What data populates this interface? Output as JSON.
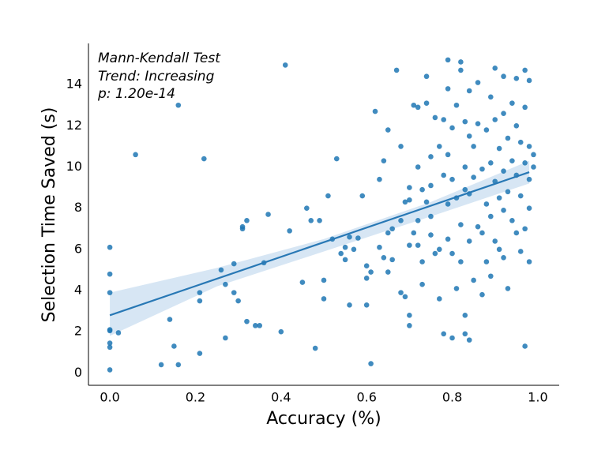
{
  "chart_data": {
    "type": "scatter",
    "xlabel": "Accuracy (%)",
    "ylabel": "Selection Time Saved (s)",
    "annotation": [
      "Mann-Kendall Test",
      "Trend: Increasing",
      "p:  1.20e-14"
    ],
    "color": "#1f77b4",
    "x": [
      0,
      0,
      0,
      0,
      0,
      0,
      0,
      0,
      0.02,
      0.06,
      0.12,
      0.14,
      0.15,
      0.16,
      0.16,
      0.21,
      0.21,
      0.21,
      0.22,
      0.26,
      0.27,
      0.27,
      0.29,
      0.29,
      0.3,
      0.31,
      0.31,
      0.32,
      0.32,
      0.35,
      0.34,
      0.36,
      0.37,
      0.4,
      0.41,
      0.42,
      0.45,
      0.46,
      0.47,
      0.48,
      0.49,
      0.5,
      0.5,
      0.51,
      0.52,
      0.53,
      0.54,
      0.55,
      0.55,
      0.56,
      0.56,
      0.57,
      0.58,
      0.59,
      0.6,
      0.6,
      0.6,
      0.61,
      0.61,
      0.62,
      0.63,
      0.63,
      0.64,
      0.64,
      0.65,
      0.65,
      0.65,
      0.66,
      0.66,
      0.67,
      0.68,
      0.68,
      0.68,
      0.69,
      0.69,
      0.7,
      0.7,
      0.7,
      0.7,
      0.7,
      0.71,
      0.71,
      0.72,
      0.72,
      0.72,
      0.72,
      0.73,
      0.73,
      0.73,
      0.74,
      0.74,
      0.74,
      0.75,
      0.75,
      0.75,
      0.75,
      0.76,
      0.76,
      0.77,
      0.77,
      0.77,
      0.78,
      0.78,
      0.78,
      0.79,
      0.79,
      0.79,
      0.79,
      0.79,
      0.8,
      0.8,
      0.8,
      0.8,
      0.81,
      0.81,
      0.81,
      0.82,
      0.82,
      0.82,
      0.82,
      0.83,
      0.83,
      0.83,
      0.83,
      0.83,
      0.84,
      0.84,
      0.84,
      0.84,
      0.84,
      0.85,
      0.85,
      0.85,
      0.86,
      0.86,
      0.86,
      0.87,
      0.87,
      0.87,
      0.88,
      0.88,
      0.88,
      0.89,
      0.89,
      0.89,
      0.89,
      0.9,
      0.9,
      0.9,
      0.9,
      0.91,
      0.91,
      0.91,
      0.92,
      0.92,
      0.92,
      0.92,
      0.92,
      0.93,
      0.93,
      0.93,
      0.94,
      0.94,
      0.94,
      0.95,
      0.95,
      0.95,
      0.95,
      0.96,
      0.96,
      0.96,
      0.97,
      0.97,
      0.97,
      0.97,
      0.97,
      0.98,
      0.98,
      0.98,
      0.98,
      0.98,
      0.99,
      0.99
    ],
    "values": [
      6.1,
      4.8,
      3.9,
      2.1,
      2.05,
      1.45,
      1.25,
      0.15,
      1.95,
      10.6,
      0.4,
      2.6,
      1.3,
      13.0,
      0.4,
      3.9,
      3.5,
      0.95,
      10.4,
      5.0,
      4.3,
      1.7,
      5.3,
      3.9,
      3.5,
      7.0,
      7.1,
      7.4,
      2.5,
      2.3,
      2.3,
      5.35,
      7.7,
      2.0,
      14.95,
      6.9,
      4.4,
      8.0,
      7.4,
      1.2,
      7.4,
      3.6,
      4.5,
      8.6,
      6.5,
      10.4,
      5.8,
      6.1,
      5.5,
      6.6,
      3.3,
      6.0,
      6.55,
      8.6,
      4.6,
      5.2,
      3.3,
      4.9,
      0.45,
      12.7,
      9.4,
      6.1,
      5.6,
      10.3,
      11.8,
      6.8,
      4.9,
      5.5,
      7.0,
      14.7,
      7.4,
      11.0,
      3.9,
      3.7,
      8.3,
      9.0,
      8.4,
      6.2,
      2.8,
      2.3,
      13.0,
      6.8,
      12.9,
      10.0,
      7.4,
      6.2,
      4.3,
      8.9,
      5.4,
      14.4,
      13.1,
      8.3,
      9.1,
      6.7,
      7.6,
      10.5,
      12.4,
      5.8,
      11.0,
      6.0,
      3.6,
      12.3,
      9.6,
      1.9,
      15.2,
      13.8,
      10.6,
      8.2,
      6.5,
      11.9,
      9.4,
      5.8,
      1.7,
      13.0,
      8.5,
      4.1,
      15.1,
      14.7,
      7.2,
      5.4,
      12.2,
      10.0,
      8.9,
      1.9,
      2.8,
      13.7,
      11.5,
      8.7,
      6.4,
      1.6,
      11.0,
      9.5,
      4.5,
      14.1,
      12.1,
      7.1,
      9.9,
      6.8,
      3.8,
      11.8,
      8.2,
      5.4,
      13.4,
      10.2,
      7.6,
      4.7,
      14.8,
      12.3,
      9.3,
      6.4,
      10.9,
      8.5,
      6.0,
      14.4,
      12.6,
      9.8,
      7.9,
      5.6,
      11.4,
      8.8,
      4.1,
      13.1,
      10.3,
      7.4,
      14.3,
      12.0,
      9.6,
      6.8,
      11.2,
      8.6,
      5.9,
      14.7,
      12.9,
      10.2,
      7.0,
      1.3,
      14.2,
      11.0,
      9.4,
      8.0,
      5.4,
      10.6,
      10.0
    ],
    "fit": {
      "x": [
        0,
        0.98
      ],
      "values": [
        2.8,
        9.75
      ],
      "color": "#2878b5"
    },
    "ci": {
      "x": [
        0,
        0.25,
        0.5,
        0.75,
        0.98
      ],
      "lower": [
        1.8,
        4.2,
        5.9,
        7.6,
        9.2
      ],
      "upper": [
        3.9,
        5.1,
        6.5,
        8.3,
        10.3
      ],
      "color": "#c6dbef"
    },
    "xlim": [
      -0.05,
      1.05
    ],
    "ylim": [
      -0.6,
      16
    ],
    "xticks": [
      {
        "value": 0,
        "label": "0.0"
      },
      0.2,
      0.4,
      0.6,
      0.8,
      {
        "value": 1,
        "label": "1.0"
      }
    ],
    "yticks": [
      0,
      2,
      4,
      6,
      8,
      10,
      12,
      14
    ],
    "grid": false
  }
}
